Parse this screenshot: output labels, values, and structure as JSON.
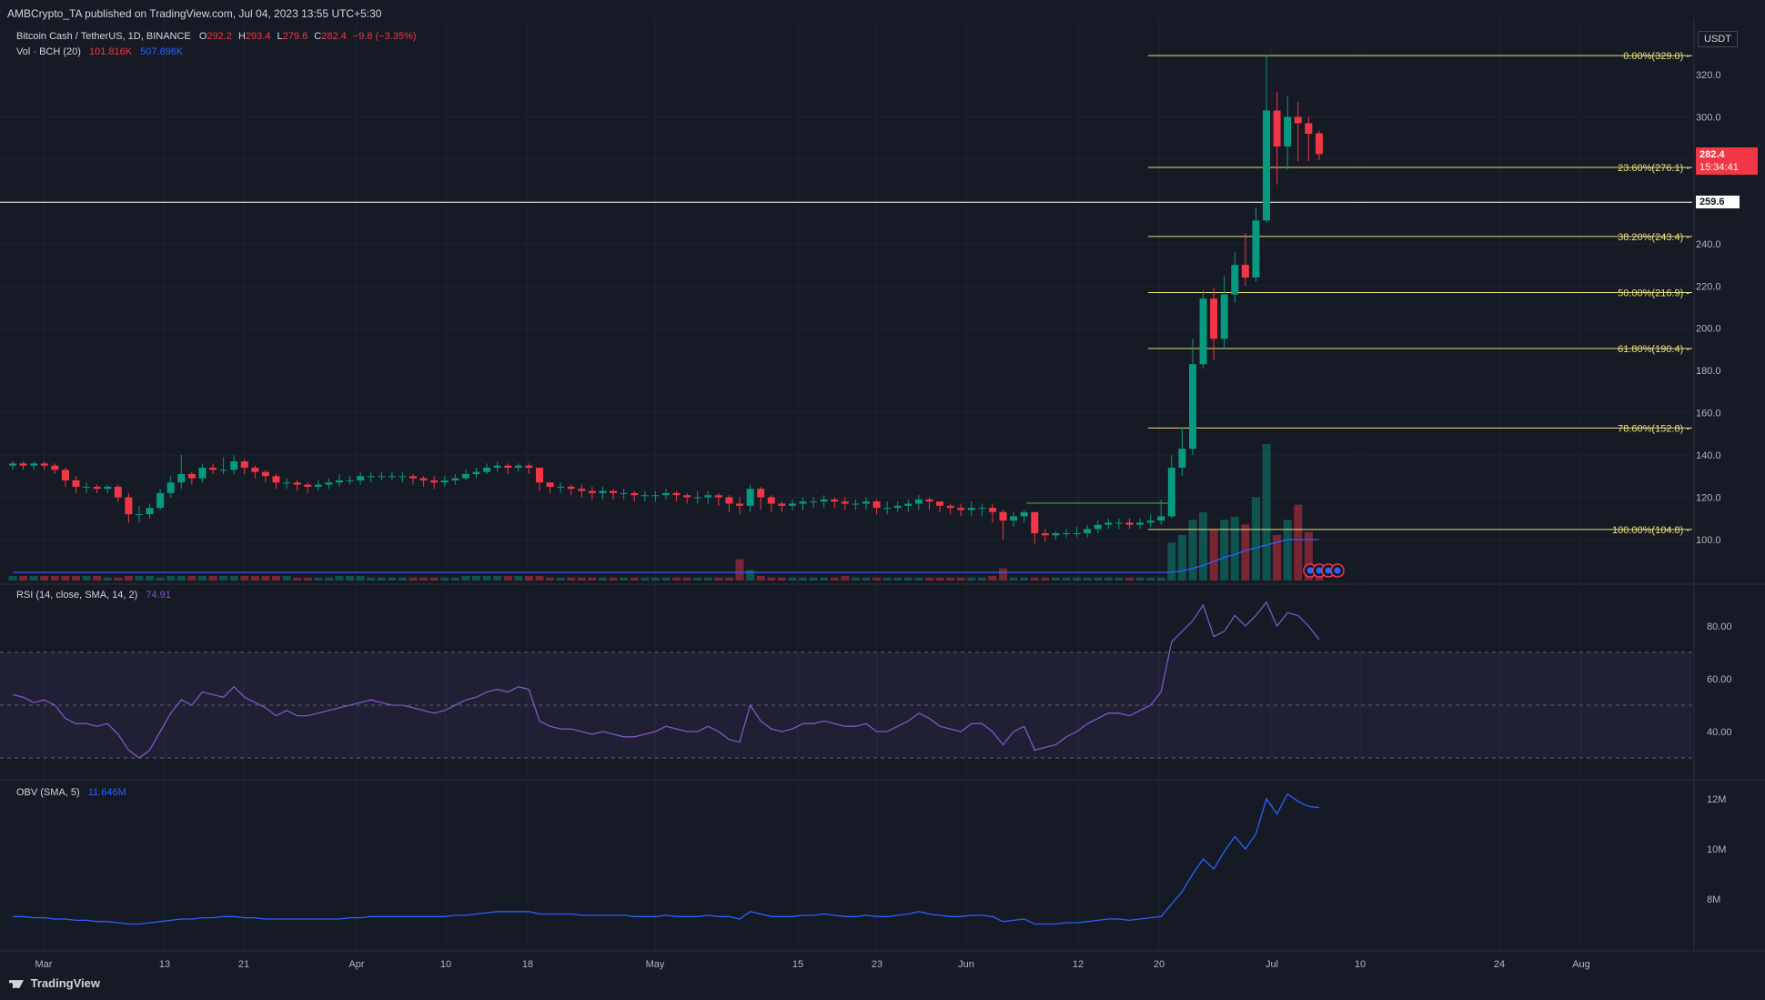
{
  "header": {
    "published": "AMBCrypto_TA published on TradingView.com, Jul 04, 2023 13:55 UTC+5:30",
    "symbol": "Bitcoin Cash / TetherUS, 1D, BINANCE",
    "o_label": "O",
    "o_value": "292.2",
    "h_label": "H",
    "h_value": "293.4",
    "l_label": "L",
    "l_value": "279.6",
    "c_label": "C",
    "c_value": "282.4",
    "change": "−9.8 (−3.35%)",
    "vol_label": "Vol · BCH (20)",
    "vol_value": "101.816K",
    "vol_ma": "507.696K",
    "currency": "USDT"
  },
  "price_badges": {
    "last_price": "282.4",
    "countdown": "15:34:41",
    "level_line": "259.6"
  },
  "colors": {
    "background": "#161a25",
    "up": "#089981",
    "down": "#f23645",
    "fib": "#e8e07a",
    "rsi": "#7e57c2",
    "obv": "#2962ff",
    "vol_ma": "#2962ff"
  },
  "panes": {
    "rsi_label": "RSI (14, close, SMA, 14, 2)",
    "rsi_value": "74.91",
    "obv_label": "OBV (SMA, 5)",
    "obv_value": "11.646M"
  },
  "footer": {
    "logo_text": "TradingView"
  },
  "chart_data": {
    "type": "candlestick",
    "symbol": "BCHUSDT",
    "price_axis": {
      "ticks": [
        "320.0",
        "300.0",
        "280.0",
        "260.0",
        "240.0",
        "220.0",
        "200.0",
        "180.0",
        "160.0",
        "140.0",
        "120.0",
        "100.0"
      ],
      "range": [
        88,
        336
      ]
    },
    "time_axis": {
      "ticks": [
        "Mar",
        "13",
        "21",
        "Apr",
        "10",
        "18",
        "May",
        "15",
        "23",
        "Jun",
        "12",
        "20",
        "Jul",
        "10",
        "24",
        "Aug"
      ]
    },
    "horizontal_level": 259.6,
    "fib_levels": [
      {
        "label": "0.00%(329.0)",
        "price": 329.0
      },
      {
        "label": "23.60%(276.1)",
        "price": 276.1
      },
      {
        "label": "38.20%(243.4)",
        "price": 243.4
      },
      {
        "label": "50.00%(216.9)",
        "price": 216.9
      },
      {
        "label": "61.80%(190.4)",
        "price": 190.4
      },
      {
        "label": "78.60%(152.8)",
        "price": 152.8
      },
      {
        "label": "100.00%(104.8)",
        "price": 104.8
      }
    ],
    "closes": [
      136,
      135,
      136,
      135,
      133,
      128,
      125,
      125,
      124,
      125,
      120,
      112,
      112,
      115,
      122,
      127,
      131,
      129,
      134,
      133,
      133,
      137,
      134,
      132,
      130,
      127,
      127,
      126,
      125,
      126,
      127,
      128,
      128,
      130,
      130,
      130,
      130,
      130,
      129,
      128,
      127,
      128,
      129,
      131,
      132,
      134,
      135,
      134,
      135,
      134,
      127,
      125,
      125,
      124,
      123,
      122,
      123,
      122,
      122,
      121,
      121,
      121,
      122,
      121,
      120,
      120,
      121,
      120,
      117,
      116,
      124,
      120,
      117,
      116,
      117,
      118,
      118,
      119,
      118,
      117,
      117,
      118,
      115,
      115,
      116,
      117,
      119,
      118,
      116,
      115,
      114,
      115,
      115,
      113,
      109,
      111,
      113,
      103,
      102,
      103,
      103,
      103,
      105,
      107,
      108,
      108,
      107,
      108,
      109,
      111,
      134,
      143,
      183,
      214,
      195,
      216,
      230,
      224,
      251,
      303,
      286,
      300,
      297,
      292,
      282.4
    ],
    "opens": [
      135,
      136,
      135,
      136,
      135,
      133,
      128,
      125,
      125,
      124,
      125,
      120,
      112,
      112,
      115,
      122,
      127,
      131,
      129,
      134,
      133,
      133,
      137,
      134,
      132,
      130,
      127,
      127,
      126,
      125,
      126,
      127,
      128,
      128,
      130,
      130,
      130,
      130,
      130,
      129,
      128,
      127,
      128,
      129,
      131,
      132,
      134,
      135,
      134,
      135,
      134,
      127,
      125,
      125,
      124,
      123,
      122,
      123,
      122,
      122,
      121,
      121,
      121,
      122,
      121,
      120,
      120,
      121,
      120,
      117,
      116,
      124,
      120,
      117,
      116,
      117,
      118,
      118,
      119,
      118,
      117,
      117,
      118,
      115,
      115,
      116,
      117,
      119,
      118,
      116,
      115,
      114,
      115,
      115,
      113,
      109,
      111,
      113,
      103,
      102,
      103,
      103,
      103,
      105,
      107,
      108,
      108,
      107,
      108,
      109,
      111,
      134,
      143,
      183,
      214,
      195,
      216,
      230,
      224,
      251,
      303,
      286,
      300,
      297,
      292.2
    ],
    "highs": [
      137,
      137,
      137,
      137,
      136,
      134,
      130,
      127,
      126,
      126,
      126,
      122,
      116,
      117,
      124,
      130,
      140,
      132,
      136,
      136,
      139,
      140,
      138,
      135,
      133,
      131,
      129,
      128,
      127,
      128,
      129,
      131,
      130,
      132,
      132,
      132,
      132,
      132,
      131,
      130,
      130,
      130,
      131,
      133,
      134,
      136,
      137,
      136,
      136,
      136,
      134,
      127,
      127,
      126,
      126,
      125,
      125,
      124,
      124,
      123,
      123,
      123,
      124,
      123,
      122,
      123,
      123,
      122,
      121,
      120,
      126,
      125,
      121,
      118,
      119,
      120,
      120,
      121,
      120,
      120,
      119,
      120,
      119,
      118,
      118,
      119,
      121,
      120,
      118,
      117,
      117,
      118,
      117,
      117,
      114,
      113,
      114,
      113,
      105,
      104,
      105,
      106,
      107,
      109,
      110,
      110,
      110,
      110,
      112,
      119,
      140,
      153,
      195,
      218,
      219,
      225,
      236,
      245,
      257,
      329,
      312,
      310,
      307,
      300,
      293.4
    ],
    "lows": [
      133,
      133,
      133,
      133,
      131,
      125,
      122,
      122,
      122,
      122,
      118,
      108,
      108,
      110,
      114,
      120,
      124,
      126,
      127,
      131,
      131,
      131,
      131,
      129,
      127,
      124,
      124,
      123,
      122,
      123,
      124,
      125,
      126,
      126,
      127,
      128,
      128,
      127,
      126,
      125,
      124,
      125,
      126,
      128,
      129,
      131,
      132,
      131,
      132,
      131,
      123,
      122,
      122,
      121,
      120,
      119,
      119,
      119,
      119,
      118,
      118,
      118,
      119,
      118,
      117,
      117,
      117,
      116,
      113,
      112,
      113,
      114,
      113,
      113,
      114,
      114,
      115,
      115,
      115,
      114,
      114,
      114,
      112,
      112,
      113,
      113,
      114,
      114,
      113,
      112,
      111,
      111,
      111,
      108,
      100,
      106,
      108,
      98,
      99,
      100,
      101,
      101,
      101,
      103,
      105,
      105,
      105,
      105,
      106,
      107,
      110,
      130,
      140,
      181,
      185,
      190,
      212,
      220,
      222,
      250,
      268,
      275,
      279,
      279,
      279.6
    ],
    "volumes": [
      3,
      3,
      3,
      3,
      3,
      3,
      3,
      3,
      3,
      2,
      2,
      3,
      3,
      3,
      2,
      3,
      3,
      3,
      3,
      3,
      3,
      3,
      3,
      3,
      3,
      3,
      3,
      2,
      2,
      2,
      2,
      3,
      3,
      3,
      2,
      2,
      2,
      2,
      2,
      2,
      2,
      2,
      2,
      3,
      3,
      3,
      3,
      3,
      3,
      3,
      3,
      2,
      2,
      2,
      2,
      2,
      2,
      2,
      2,
      2,
      2,
      2,
      2,
      2,
      2,
      2,
      2,
      2,
      2,
      14,
      7,
      3,
      2,
      2,
      2,
      2,
      2,
      2,
      2,
      3,
      2,
      2,
      2,
      2,
      2,
      2,
      2,
      2,
      2,
      2,
      2,
      2,
      2,
      3,
      8,
      2,
      2,
      2,
      2,
      2,
      2,
      2,
      2,
      2,
      2,
      2,
      2,
      2,
      2,
      2,
      25,
      30,
      40,
      45,
      34,
      40,
      42,
      37,
      55,
      90,
      30,
      40,
      50,
      32,
      9
    ],
    "volume_ma": [
      0.3,
      0.3,
      0.3,
      0.3,
      0.3,
      0.3,
      0.3,
      0.3,
      0.3,
      0.3,
      0.3,
      0.3,
      0.3,
      0.3,
      0.3,
      0.3,
      0.3,
      0.3,
      0.3,
      0.3,
      0.3,
      0.3,
      0.3,
      0.3,
      0.3,
      0.3,
      0.3,
      0.3,
      0.3,
      0.3,
      0.3,
      0.3,
      0.3,
      0.3,
      0.3,
      0.3,
      0.3,
      0.3,
      0.3,
      0.3,
      0.3,
      0.3,
      0.3,
      0.3,
      0.3,
      0.3,
      0.3,
      0.3,
      0.3,
      0.3,
      0.3,
      0.3,
      0.3,
      0.3,
      0.3,
      0.3,
      0.3,
      0.3,
      0.3,
      0.3,
      0.3,
      0.3,
      0.3,
      0.3,
      0.3,
      0.3,
      0.3,
      0.3,
      0.3,
      0.3,
      0.3,
      0.3,
      0.3,
      0.3,
      0.3,
      0.3,
      0.3,
      0.3,
      0.3,
      0.3,
      0.3,
      0.3,
      0.3,
      0.3,
      0.3,
      0.3,
      0.3,
      0.3,
      0.3,
      0.3,
      0.3,
      0.3,
      0.3,
      0.3,
      0.3,
      0.3,
      0.3,
      0.3,
      0.3,
      0.3,
      0.3,
      0.3,
      0.3,
      0.3,
      0.3,
      0.3,
      0.3,
      0.3,
      0.3,
      0.3,
      0.3,
      0.35,
      0.45,
      0.55,
      0.7,
      0.85,
      0.95,
      1.1,
      1.2,
      1.3,
      1.4,
      1.5,
      1.5,
      1.5,
      1.5
    ],
    "rsi": [
      54,
      53,
      51,
      52,
      50,
      45,
      43,
      43,
      42,
      43,
      39,
      33,
      30,
      33,
      40,
      47,
      52,
      50,
      55,
      54,
      53,
      57,
      53,
      51,
      49,
      46,
      48,
      46,
      46,
      47,
      48,
      49,
      50,
      51,
      52,
      51,
      50,
      50,
      49,
      48,
      47,
      48,
      50,
      52,
      53,
      55,
      56,
      55,
      57,
      56,
      44,
      42,
      41,
      41,
      40,
      39,
      40,
      39,
      38,
      38,
      39,
      40,
      42,
      41,
      40,
      40,
      42,
      40,
      37,
      36,
      50,
      44,
      41,
      40,
      41,
      43,
      43,
      44,
      43,
      42,
      42,
      43,
      40,
      40,
      42,
      44,
      47,
      45,
      42,
      41,
      40,
      43,
      43,
      40,
      35,
      40,
      42,
      33,
      34,
      35,
      38,
      40,
      43,
      45,
      47,
      47,
      46,
      48,
      50,
      55,
      74,
      78,
      82,
      88,
      76,
      78,
      84,
      80,
      84,
      89,
      80,
      85,
      84,
      80,
      74.9
    ],
    "obv": [
      7.3,
      7.3,
      7.25,
      7.25,
      7.2,
      7.2,
      7.15,
      7.15,
      7.1,
      7.1,
      7.05,
      7.0,
      7.0,
      7.05,
      7.1,
      7.15,
      7.2,
      7.2,
      7.25,
      7.25,
      7.3,
      7.3,
      7.25,
      7.25,
      7.2,
      7.2,
      7.2,
      7.2,
      7.2,
      7.2,
      7.2,
      7.2,
      7.25,
      7.25,
      7.3,
      7.3,
      7.3,
      7.3,
      7.3,
      7.3,
      7.3,
      7.3,
      7.35,
      7.35,
      7.4,
      7.45,
      7.5,
      7.5,
      7.5,
      7.5,
      7.4,
      7.4,
      7.4,
      7.4,
      7.35,
      7.35,
      7.35,
      7.35,
      7.35,
      7.3,
      7.3,
      7.3,
      7.35,
      7.3,
      7.3,
      7.3,
      7.35,
      7.3,
      7.3,
      7.2,
      7.5,
      7.4,
      7.3,
      7.3,
      7.3,
      7.35,
      7.35,
      7.4,
      7.35,
      7.3,
      7.3,
      7.35,
      7.3,
      7.3,
      7.35,
      7.4,
      7.5,
      7.4,
      7.35,
      7.3,
      7.3,
      7.35,
      7.35,
      7.3,
      7.1,
      7.15,
      7.2,
      7.0,
      7.0,
      7.0,
      7.05,
      7.05,
      7.1,
      7.15,
      7.2,
      7.2,
      7.15,
      7.2,
      7.25,
      7.3,
      7.8,
      8.3,
      9.0,
      9.6,
      9.2,
      9.9,
      10.5,
      10.0,
      10.6,
      12.0,
      11.4,
      12.2,
      11.9,
      11.7,
      11.646
    ],
    "rsi_axis": {
      "ticks": [
        "80.00",
        "60.00",
        "40.00"
      ],
      "bands": [
        70,
        50,
        30
      ]
    },
    "obv_axis": {
      "ticks": [
        "12M",
        "10M",
        "8M"
      ]
    }
  }
}
